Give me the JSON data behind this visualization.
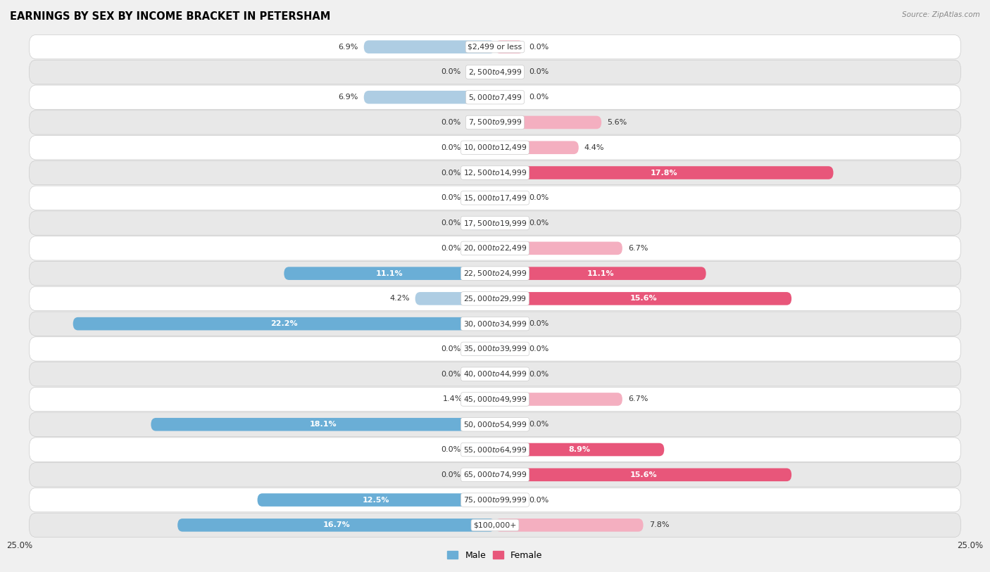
{
  "title": "EARNINGS BY SEX BY INCOME BRACKET IN PETERSHAM",
  "source": "Source: ZipAtlas.com",
  "categories": [
    "$2,499 or less",
    "$2,500 to $4,999",
    "$5,000 to $7,499",
    "$7,500 to $9,999",
    "$10,000 to $12,499",
    "$12,500 to $14,999",
    "$15,000 to $17,499",
    "$17,500 to $19,999",
    "$20,000 to $22,499",
    "$22,500 to $24,999",
    "$25,000 to $29,999",
    "$30,000 to $34,999",
    "$35,000 to $39,999",
    "$40,000 to $44,999",
    "$45,000 to $49,999",
    "$50,000 to $54,999",
    "$55,000 to $64,999",
    "$65,000 to $74,999",
    "$75,000 to $99,999",
    "$100,000+"
  ],
  "male_values": [
    6.9,
    0.0,
    6.9,
    0.0,
    0.0,
    0.0,
    0.0,
    0.0,
    0.0,
    11.1,
    4.2,
    22.2,
    0.0,
    0.0,
    1.4,
    18.1,
    0.0,
    0.0,
    12.5,
    16.7
  ],
  "female_values": [
    0.0,
    0.0,
    0.0,
    5.6,
    4.4,
    17.8,
    0.0,
    0.0,
    6.7,
    11.1,
    15.6,
    0.0,
    0.0,
    0.0,
    6.7,
    0.0,
    8.9,
    15.6,
    0.0,
    7.8
  ],
  "male_color_strong": "#6aaed6",
  "male_color_weak": "#aecde3",
  "female_color_strong": "#e8567a",
  "female_color_weak": "#f4afc0",
  "xlim": 25.0,
  "bar_height": 0.52,
  "bg_color": "#f0f0f0",
  "row_light_color": "#ffffff",
  "row_dark_color": "#e8e8e8",
  "title_fontsize": 10.5,
  "label_fontsize": 8,
  "tick_fontsize": 8.5,
  "category_fontsize": 7.8,
  "strong_threshold": 8.0,
  "stub_value": 1.5
}
